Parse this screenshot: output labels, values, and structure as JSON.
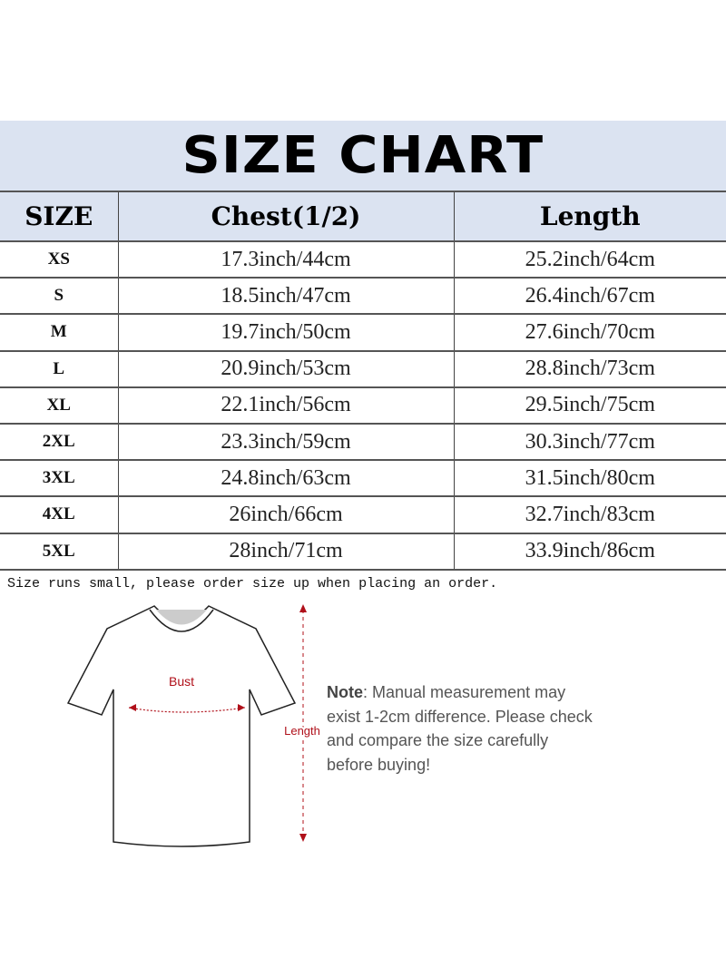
{
  "title": "SIZE CHART",
  "table": {
    "headers": [
      "SIZE",
      "Chest(1/2)",
      "Length"
    ],
    "rows": [
      [
        "XS",
        "17.3inch/44cm",
        "25.2inch/64cm"
      ],
      [
        "S",
        "18.5inch/47cm",
        "26.4inch/67cm"
      ],
      [
        "M",
        "19.7inch/50cm",
        "27.6inch/70cm"
      ],
      [
        "L",
        "20.9inch/53cm",
        "28.8inch/73cm"
      ],
      [
        "XL",
        "22.1inch/56cm",
        "29.5inch/75cm"
      ],
      [
        "2XL",
        "23.3inch/59cm",
        "30.3inch/77cm"
      ],
      [
        "3XL",
        "24.8inch/63cm",
        "31.5inch/80cm"
      ],
      [
        "4XL",
        "26inch/66cm",
        "32.7inch/83cm"
      ],
      [
        "5XL",
        "28inch/71cm",
        "33.9inch/86cm"
      ]
    ]
  },
  "size_note": "Size runs small, please order size up when placing an order.",
  "diagram": {
    "bust_label": "Bust",
    "length_label": "Length",
    "accent_color": "#b0101a"
  },
  "note": {
    "label": "Note",
    "text": ": Manual measurement may exist 1-2cm difference. Please check and compare the size carefully before buying!"
  }
}
